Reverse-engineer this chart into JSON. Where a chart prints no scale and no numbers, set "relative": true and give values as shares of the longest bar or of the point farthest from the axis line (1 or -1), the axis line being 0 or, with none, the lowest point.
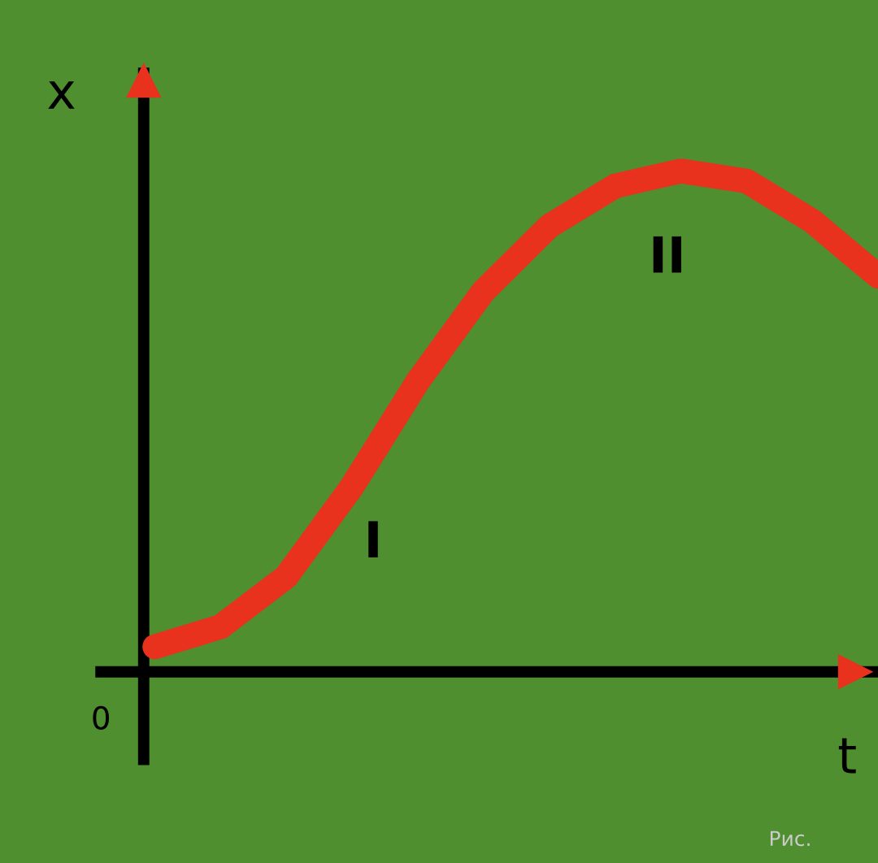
{
  "chart_data": {
    "type": "line",
    "relative": true,
    "xlabel": "t",
    "ylabel": "x",
    "color": "#e8321e",
    "categories": [
      null,
      null,
      null,
      null,
      null,
      null,
      null,
      null,
      null,
      null,
      null,
      null
    ],
    "values": [
      0.05,
      0.09,
      0.19,
      0.37,
      0.58,
      0.76,
      0.89,
      0.97,
      1,
      0.98,
      0.9,
      0.79
    ],
    "annotations": [
      "0",
      "I",
      "II",
      "Рис."
    ]
  }
}
